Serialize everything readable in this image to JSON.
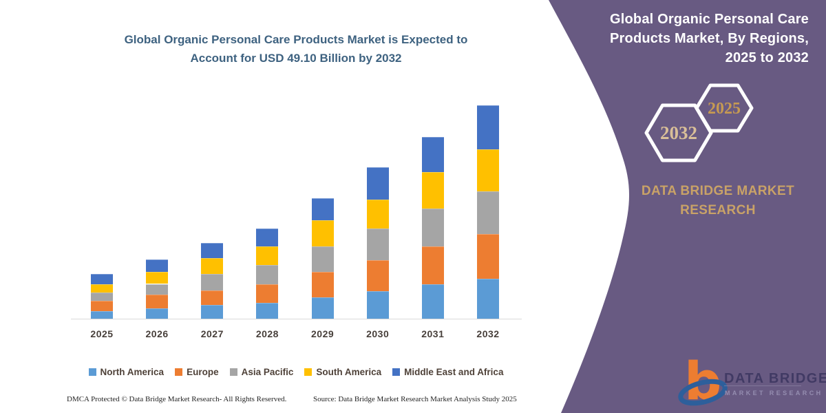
{
  "chart": {
    "title_line1": "Global Organic Personal Care Products Market is Expected to",
    "title_line2": "Account for USD 49.10 Billion by 2032",
    "title_color": "#3e6280"
  },
  "chart_data": {
    "type": "bar",
    "stacked": true,
    "title": "Global Organic Personal Care Products Market is Expected to Account for USD 49.10 Billion by 2032",
    "unit": "USD Billion",
    "categories": [
      "2025",
      "2026",
      "2027",
      "2028",
      "2029",
      "2030",
      "2031",
      "2032"
    ],
    "series": [
      {
        "name": "North America",
        "color": "#5B9BD5",
        "values": [
          1.7,
          2.4,
          3.2,
          3.6,
          4.9,
          6.3,
          7.9,
          9.2
        ]
      },
      {
        "name": "Europe",
        "color": "#ED7D31",
        "values": [
          2.4,
          3.2,
          3.3,
          4.3,
          5.9,
          7.1,
          8.7,
          10.3
        ]
      },
      {
        "name": "Asia Pacific",
        "color": "#A5A5A5",
        "values": [
          1.9,
          2.4,
          3.8,
          4.4,
          5.9,
          7.3,
          8.7,
          9.8
        ]
      },
      {
        "name": "South America",
        "color": "#FFC000",
        "values": [
          1.9,
          2.8,
          3.6,
          4.3,
          6.0,
          6.7,
          8.4,
          9.7
        ]
      },
      {
        "name": "Middle East and Africa",
        "color": "#4472C4",
        "values": [
          2.4,
          2.9,
          3.5,
          4.1,
          5.1,
          7.4,
          8.2,
          10.1
        ]
      }
    ],
    "totals": [
      10.3,
      13.7,
      17.4,
      20.7,
      27.8,
      34.8,
      41.9,
      49.1
    ],
    "xlabel": "",
    "ylabel": "",
    "ylim": [
      0,
      49.1
    ],
    "gridlines": false,
    "y_axis_visible": false,
    "legend_position": "bottom"
  },
  "panel": {
    "background_color": "#685a82",
    "title": "Global Organic Personal Care Products Market, By Regions, 2025 to 2032",
    "hexagon_back_year": "2032",
    "hexagon_front_year": "2025",
    "hexagon_back_year_color": "#d9bf98",
    "hexagon_front_year_color": "#c69a52",
    "brand_text": "DATA BRIDGE MARKET RESEARCH",
    "brand_color": "#c9a267",
    "logo": {
      "b_mark_color": "#ED7D31",
      "ring_color": "#2d5f9b",
      "wordmark": "DATA BRIDGE",
      "wordmark_sub": "MARKET RESEARCH"
    }
  },
  "footer": {
    "dmca": "DMCA Protected © Data Bridge Market Research-  All Rights Reserved.",
    "source": "Source: Data Bridge Market Research  Market Analysis Study 2025"
  }
}
